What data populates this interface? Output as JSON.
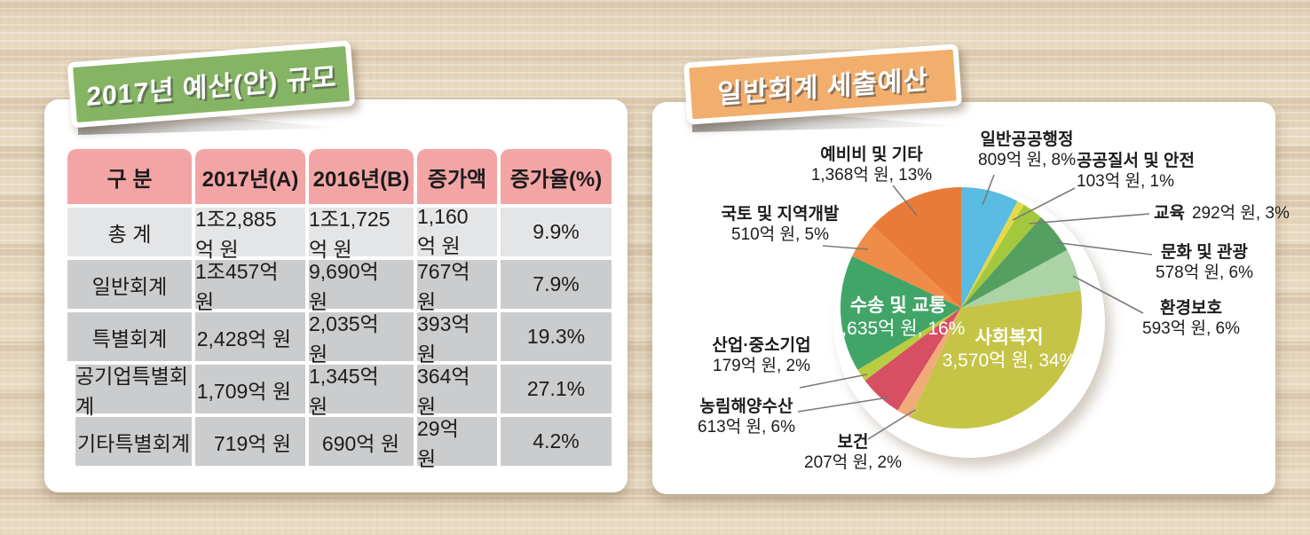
{
  "left_panel": {
    "title": "2017년 예산(안) 규모",
    "table": {
      "columns": [
        "구 분",
        "2017년(A)",
        "2016년(B)",
        "증가액",
        "증가율(%)"
      ],
      "rows": [
        {
          "label": "총 계",
          "y2017": "1조2,885억 원",
          "y2016": "1조1,725억 원",
          "increase": "1,160억 원",
          "rate": "9.9%",
          "emphasis": true,
          "indent": false
        },
        {
          "label": "일반회계",
          "y2017": "1조457억 원",
          "y2016": "9,690억 원",
          "increase": "767억 원",
          "rate": "7.9%",
          "emphasis": false,
          "indent": false
        },
        {
          "label": "특별회계",
          "y2017": "2,428억 원",
          "y2016": "2,035억 원",
          "increase": "393억 원",
          "rate": "19.3%",
          "emphasis": false,
          "indent": false
        },
        {
          "label": "공기업특별회계",
          "y2017": "1,709억 원",
          "y2016": "1,345억 원",
          "increase": "364억 원",
          "rate": "27.1%",
          "emphasis": false,
          "indent": true
        },
        {
          "label": "기타특별회계",
          "y2017": "719억 원",
          "y2016": "690억 원",
          "increase": "29억 원",
          "rate": "4.2%",
          "emphasis": false,
          "indent": true
        }
      ]
    }
  },
  "right_panel": {
    "title": "일반회계 세출예산"
  },
  "chart_data": {
    "type": "pie",
    "title": "일반회계 세출예산",
    "unit": "억 원",
    "start_angle_deg": 0,
    "direction": "clockwise",
    "legend_position": "outside-callouts",
    "slices": [
      {
        "name": "일반공공행정",
        "value": 809,
        "pct": 8,
        "label": "809억 원, 8%",
        "color": "#59bce2",
        "inside": false
      },
      {
        "name": "공공질서 및 안전",
        "value": 103,
        "pct": 1,
        "label": "103억 원, 1%",
        "color": "#e5d84b",
        "inside": false
      },
      {
        "name": "교육",
        "value": 292,
        "pct": 3,
        "label": "292억 원, 3%",
        "color": "#a4c83d",
        "inside": false
      },
      {
        "name": "문화 및 관광",
        "value": 578,
        "pct": 6,
        "label": "578억 원, 6%",
        "color": "#55a061",
        "inside": false
      },
      {
        "name": "환경보호",
        "value": 593,
        "pct": 6,
        "label": "593억 원, 6%",
        "color": "#abd3a6",
        "inside": false
      },
      {
        "name": "사회복지",
        "value": 3570,
        "pct": 34,
        "label": "3,570억 원, 34%",
        "color": "#c5c447",
        "inside": true
      },
      {
        "name": "보건",
        "value": 207,
        "pct": 2,
        "label": "207억 원, 2%",
        "color": "#f0ab79",
        "inside": false
      },
      {
        "name": "농림해양수산",
        "value": 613,
        "pct": 6,
        "label": "613억 원, 6%",
        "color": "#d64f62",
        "inside": false
      },
      {
        "name": "산업·중소기업",
        "value": 179,
        "pct": 2,
        "label": "179억 원, 2%",
        "color": "#bacc3f",
        "inside": false
      },
      {
        "name": "수송 및 교통",
        "value": 1635,
        "pct": 16,
        "label": "1,635억 원, 16%",
        "color": "#42a568",
        "inside": true
      },
      {
        "name": "국토 및 지역개발",
        "value": 510,
        "pct": 5,
        "label": "510억 원, 5%",
        "color": "#ef8c48",
        "inside": false
      },
      {
        "name": "예비비 및 기타",
        "value": 1368,
        "pct": 13,
        "label": "1,368억 원, 13%",
        "color": "#e97b38",
        "inside": false
      }
    ]
  }
}
